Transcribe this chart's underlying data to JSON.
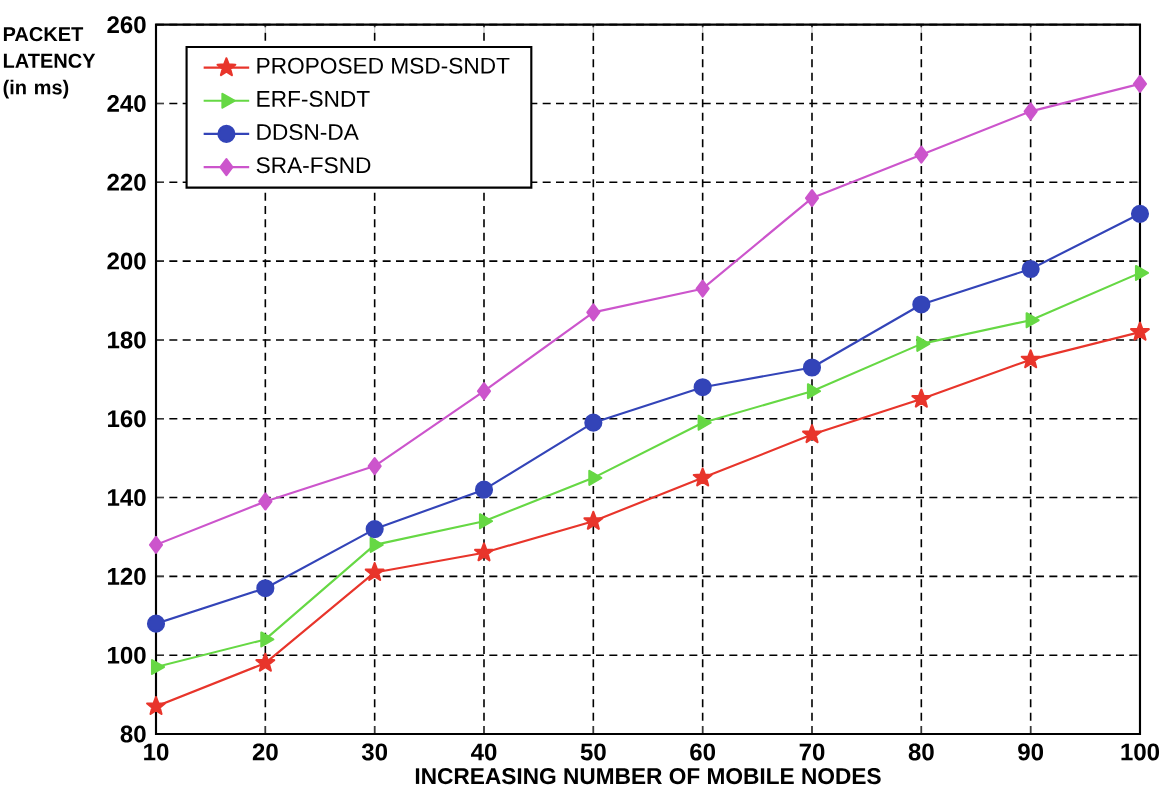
{
  "chart_data": {
    "type": "line",
    "xlabel": "INCREASING NUMBER OF MOBILE NODES",
    "ylabel": "PACKET LATENCY (in ms)",
    "x": [
      10,
      20,
      30,
      40,
      50,
      60,
      70,
      80,
      90,
      100
    ],
    "xlim": [
      10,
      100
    ],
    "ylim": [
      80,
      260
    ],
    "xticks": [
      10,
      20,
      30,
      40,
      50,
      60,
      70,
      80,
      90,
      100
    ],
    "yticks": [
      80,
      100,
      120,
      140,
      160,
      180,
      200,
      220,
      240,
      260
    ],
    "grid": true,
    "legend": "top left",
    "series": [
      {
        "name": "PROPOSED MSD-SNDT",
        "color": "#e8352b",
        "marker": "star",
        "values": [
          87,
          98,
          121,
          126,
          134,
          145,
          156,
          165,
          175,
          182
        ]
      },
      {
        "name": "ERF-SNDT",
        "color": "#66d844",
        "marker": "triangle",
        "values": [
          97,
          104,
          128,
          134,
          145,
          159,
          167,
          179,
          185,
          197
        ]
      },
      {
        "name": "DDSN-DA",
        "color": "#3344b8",
        "marker": "circle",
        "values": [
          108,
          117,
          132,
          142,
          159,
          168,
          173,
          189,
          198,
          212
        ]
      },
      {
        "name": "SRA-FSND",
        "color": "#cc55cc",
        "marker": "diamond",
        "values": [
          128,
          139,
          148,
          167,
          187,
          193,
          216,
          227,
          238,
          245
        ]
      }
    ]
  }
}
